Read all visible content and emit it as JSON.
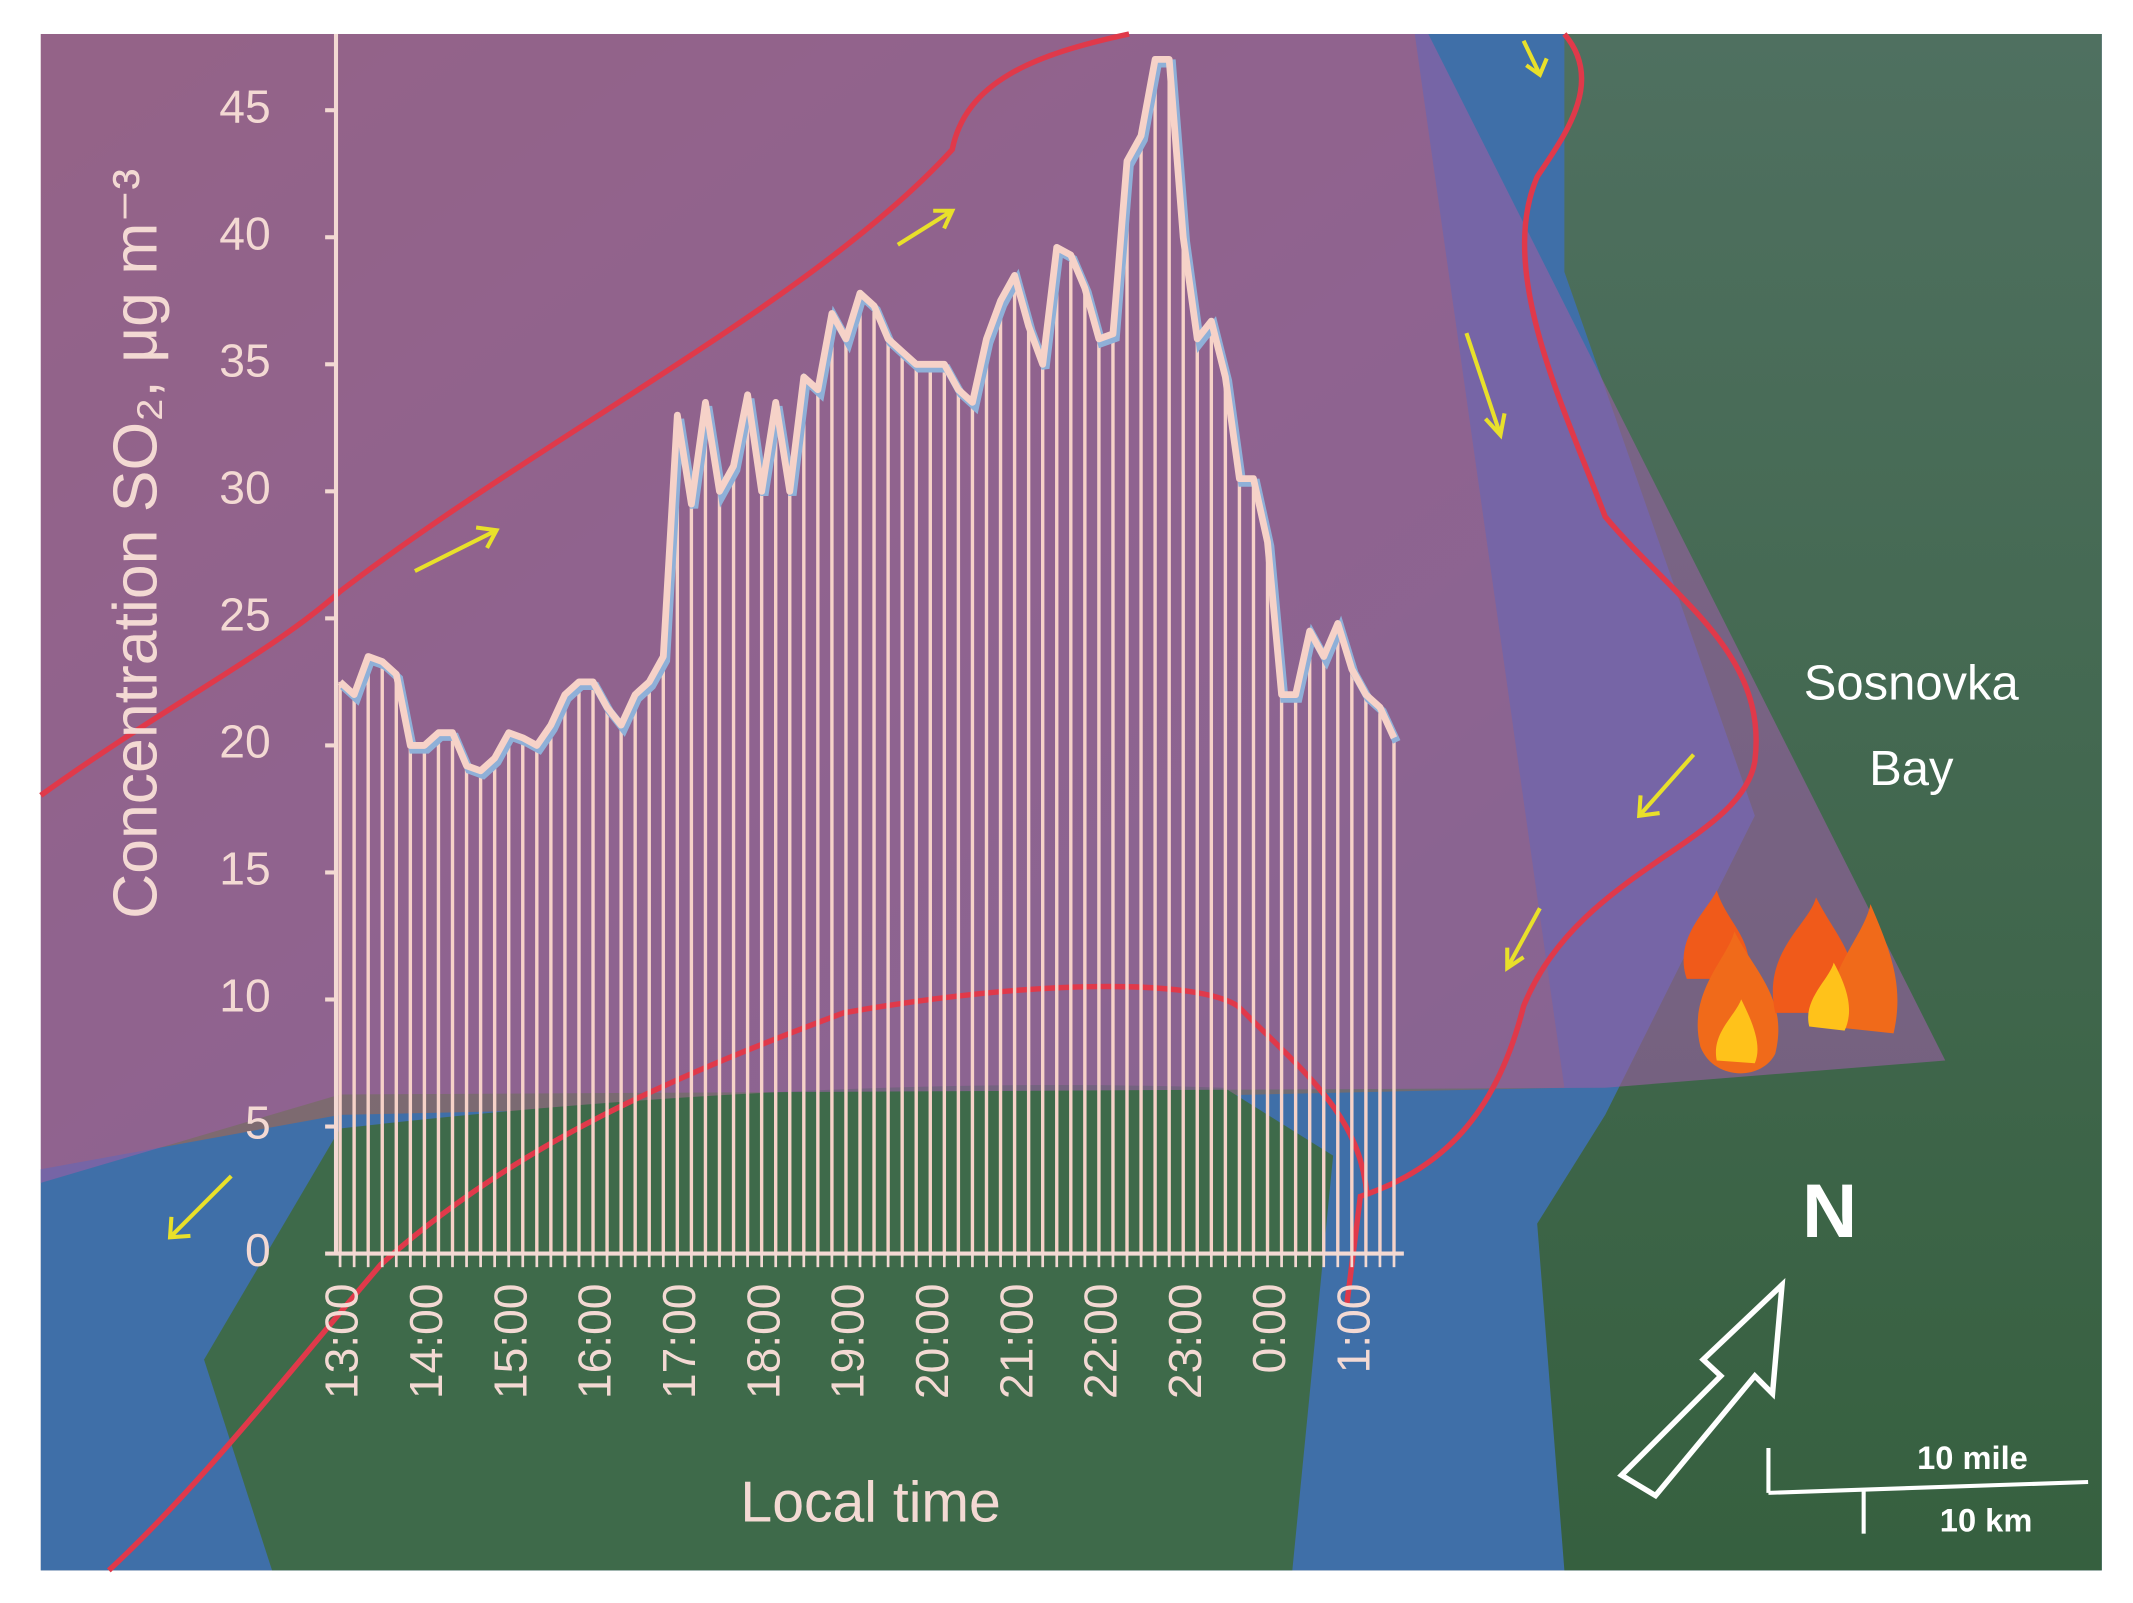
{
  "chart_data": {
    "type": "line",
    "y_label": "Concentration SO₂, μg m⁻³",
    "x_label": "Local time",
    "categories": [
      "13:00",
      null,
      null,
      null,
      null,
      null,
      "14:00",
      null,
      null,
      null,
      null,
      null,
      "15:00",
      null,
      null,
      null,
      null,
      null,
      "16:00",
      null,
      null,
      null,
      null,
      null,
      "17:00",
      null,
      null,
      null,
      null,
      null,
      "18:00",
      null,
      null,
      null,
      null,
      null,
      "19:00",
      null,
      null,
      null,
      null,
      null,
      "20:00",
      null,
      null,
      null,
      null,
      null,
      "21:00",
      null,
      null,
      null,
      null,
      null,
      "22:00",
      null,
      null,
      null,
      null,
      null,
      "23:00",
      null,
      null,
      null,
      null,
      null,
      "0:00",
      null,
      null,
      null,
      null,
      null,
      "1:00",
      null,
      null,
      null
    ],
    "series": [
      {
        "color": "#f6d2c8",
        "values": [
          22.5,
          22,
          23.5,
          23.3,
          22.8,
          20,
          20,
          20.5,
          20.5,
          19.2,
          19,
          19.5,
          20.5,
          20.3,
          20,
          20.8,
          22,
          22.5,
          22.5,
          21.5,
          20.8,
          22,
          22.5,
          23.5,
          33,
          29.5,
          33.5,
          30,
          31,
          33.8,
          30,
          33.5,
          30,
          34.5,
          34,
          37,
          36,
          37.8,
          37.3,
          36,
          35.5,
          35,
          35,
          35,
          34,
          33.5,
          36,
          37.5,
          38.5,
          36.5,
          35,
          39.6,
          39.3,
          38,
          36,
          36.2,
          43,
          44,
          47,
          47,
          40,
          36,
          36.7,
          34.5,
          30.5,
          30.5,
          28,
          22,
          22,
          24.5,
          23.5,
          24.8,
          23,
          22,
          21.5,
          20.3
        ]
      }
    ],
    "ylim": [
      0,
      48
    ],
    "yticks": [
      0,
      5,
      10,
      15,
      20,
      25,
      30,
      35,
      40,
      45
    ],
    "place_label": [
      "Sosnovka",
      "Bay"
    ],
    "north_label": "N",
    "scale_labels": [
      "10 mile",
      "10 km"
    ]
  }
}
